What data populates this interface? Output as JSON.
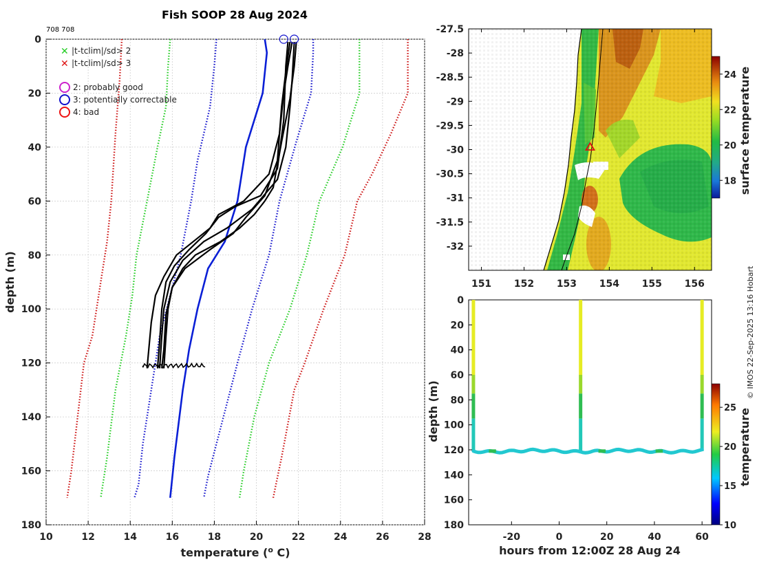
{
  "title": "Fish SOOP 28 Aug 2024",
  "cruise_id": "708 708",
  "credit": "© IMOS 22-Sep-2025 13:16 Hobart",
  "colors": {
    "climatology_sd2": "#22cc22",
    "climatology_sd3": "#cc1111",
    "climatology_sd1": "#1111cc",
    "climatology_mean": "#0a1fd6",
    "profiles": "#000000",
    "flag_probably_good": "#cc22cc",
    "flag_correctable": "#1111cc",
    "flag_bad": "#ee1111"
  },
  "legend": {
    "cross_green": "|t-tclim|/sd> 2",
    "cross_red": "|t-tclim|/sd> 3",
    "flag2": "2: probably good",
    "flag3": "3: potentially correctable",
    "flag4": "4: bad"
  },
  "chart_data": [
    {
      "type": "line",
      "name": "profile-plot",
      "xlabel": "temperature (° C)",
      "ylabel": "depth (m)",
      "xlim": [
        10,
        28
      ],
      "ylim": [
        180,
        0
      ],
      "xticks": [
        10,
        12,
        14,
        16,
        18,
        20,
        22,
        24,
        26,
        28
      ],
      "yticks": [
        0,
        20,
        40,
        60,
        80,
        100,
        120,
        140,
        160,
        180
      ],
      "grid": true,
      "series": [
        {
          "name": "mean",
          "style": "solid",
          "color": "climatology_mean",
          "points": [
            [
              20.4,
              0
            ],
            [
              20.5,
              5
            ],
            [
              20.3,
              20
            ],
            [
              19.5,
              40
            ],
            [
              19.1,
              60
            ],
            [
              18.5,
              75
            ],
            [
              17.7,
              85
            ],
            [
              17.2,
              100
            ],
            [
              16.8,
              115
            ],
            [
              16.5,
              130
            ],
            [
              16.1,
              155
            ],
            [
              15.9,
              170
            ]
          ]
        },
        {
          "name": "mean+sd",
          "style": "dotted",
          "color": "climatology_sd1",
          "points": [
            [
              22.7,
              0
            ],
            [
              22.7,
              5
            ],
            [
              22.6,
              20
            ],
            [
              21.9,
              38
            ],
            [
              21.1,
              60
            ],
            [
              20.6,
              80
            ],
            [
              19.8,
              100
            ],
            [
              19.1,
              120
            ],
            [
              18.6,
              135
            ],
            [
              18.1,
              150
            ],
            [
              17.7,
              162
            ],
            [
              17.5,
              170
            ]
          ]
        },
        {
          "name": "mean-sd",
          "style": "dotted",
          "color": "climatology_sd1",
          "points": [
            [
              18.1,
              0
            ],
            [
              18.0,
              10
            ],
            [
              17.8,
              25
            ],
            [
              17.2,
              45
            ],
            [
              16.9,
              60
            ],
            [
              16.4,
              80
            ],
            [
              15.9,
              95
            ],
            [
              15.4,
              110
            ],
            [
              15.0,
              130
            ],
            [
              14.6,
              150
            ],
            [
              14.4,
              165
            ],
            [
              14.2,
              170
            ]
          ]
        },
        {
          "name": "mean+2sd",
          "style": "dotted",
          "color": "climatology_sd2",
          "points": [
            [
              24.9,
              0
            ],
            [
              24.9,
              10
            ],
            [
              24.9,
              20
            ],
            [
              24.1,
              40
            ],
            [
              23.0,
              60
            ],
            [
              22.4,
              80
            ],
            [
              21.6,
              100
            ],
            [
              20.6,
              120
            ],
            [
              19.9,
              140
            ],
            [
              19.4,
              160
            ],
            [
              19.2,
              170
            ]
          ]
        },
        {
          "name": "mean-2sd",
          "style": "dotted",
          "color": "climatology_sd2",
          "points": [
            [
              15.9,
              0
            ],
            [
              15.8,
              10
            ],
            [
              15.7,
              25
            ],
            [
              15.3,
              40
            ],
            [
              14.8,
              60
            ],
            [
              14.3,
              80
            ],
            [
              14.1,
              95
            ],
            [
              13.8,
              110
            ],
            [
              13.3,
              130
            ],
            [
              12.9,
              155
            ],
            [
              12.6,
              170
            ]
          ]
        },
        {
          "name": "mean+3sd",
          "style": "dotted",
          "color": "climatology_sd3",
          "points": [
            [
              27.2,
              0
            ],
            [
              27.2,
              10
            ],
            [
              27.2,
              20
            ],
            [
              26.4,
              35
            ],
            [
              25.5,
              50
            ],
            [
              24.8,
              60
            ],
            [
              24.2,
              80
            ],
            [
              23.2,
              100
            ],
            [
              22.3,
              120
            ],
            [
              21.8,
              130
            ],
            [
              21.2,
              155
            ],
            [
              20.8,
              170
            ]
          ]
        },
        {
          "name": "mean-3sd",
          "style": "dotted",
          "color": "climatology_sd3",
          "points": [
            [
              13.6,
              0
            ],
            [
              13.5,
              15
            ],
            [
              13.3,
              35
            ],
            [
              13.1,
              60
            ],
            [
              12.9,
              75
            ],
            [
              12.6,
              90
            ],
            [
              12.2,
              110
            ],
            [
              11.8,
              120
            ],
            [
              11.5,
              140
            ],
            [
              11.2,
              160
            ],
            [
              11.0,
              170
            ]
          ]
        },
        {
          "name": "profile-1",
          "style": "solid",
          "color": "profiles",
          "points": [
            [
              21.7,
              1
            ],
            [
              21.5,
              10
            ],
            [
              21.3,
              20
            ],
            [
              21.1,
              35
            ],
            [
              20.6,
              50
            ],
            [
              19.4,
              60
            ],
            [
              18.2,
              65
            ],
            [
              17.8,
              70
            ],
            [
              17.0,
              75
            ],
            [
              16.2,
              80
            ],
            [
              15.6,
              88
            ],
            [
              15.2,
              95
            ],
            [
              15.0,
              105
            ],
            [
              14.8,
              122
            ]
          ]
        },
        {
          "name": "profile-2",
          "style": "solid",
          "color": "profiles",
          "points": [
            [
              21.8,
              1
            ],
            [
              21.7,
              15
            ],
            [
              21.6,
              25
            ],
            [
              21.4,
              40
            ],
            [
              21.0,
              52
            ],
            [
              19.8,
              63
            ],
            [
              18.6,
              70
            ],
            [
              17.5,
              75
            ],
            [
              16.5,
              82
            ],
            [
              15.9,
              90
            ],
            [
              15.6,
              100
            ],
            [
              15.5,
              110
            ],
            [
              15.4,
              122
            ]
          ]
        },
        {
          "name": "profile-3",
          "style": "solid",
          "color": "profiles",
          "points": [
            [
              21.6,
              1
            ],
            [
              21.4,
              12
            ],
            [
              21.2,
              25
            ],
            [
              21.0,
              45
            ],
            [
              20.4,
              58
            ],
            [
              19.5,
              66
            ],
            [
              18.9,
              72
            ],
            [
              17.8,
              78
            ],
            [
              16.6,
              85
            ],
            [
              16.0,
              92
            ],
            [
              15.8,
              100
            ],
            [
              15.7,
              110
            ],
            [
              15.6,
              122
            ]
          ]
        },
        {
          "name": "profile-4",
          "style": "solid",
          "color": "profiles",
          "points": [
            [
              21.9,
              1
            ],
            [
              21.8,
              10
            ],
            [
              21.6,
              22
            ],
            [
              21.2,
              38
            ],
            [
              20.8,
              55
            ],
            [
              20.4,
              60
            ],
            [
              19.9,
              65
            ],
            [
              19.2,
              70
            ],
            [
              18.3,
              75
            ],
            [
              17.1,
              80
            ],
            [
              16.5,
              85
            ],
            [
              16.0,
              92
            ],
            [
              15.7,
              102
            ],
            [
              15.6,
              115
            ],
            [
              15.5,
              122
            ]
          ]
        },
        {
          "name": "profile-5",
          "style": "solid",
          "color": "profiles",
          "points": [
            [
              21.5,
              1
            ],
            [
              21.4,
              10
            ],
            [
              21.3,
              30
            ],
            [
              21.0,
              48
            ],
            [
              20.2,
              58
            ],
            [
              19.0,
              62
            ],
            [
              18.2,
              66
            ],
            [
              17.6,
              72
            ],
            [
              16.8,
              78
            ],
            [
              16.1,
              84
            ],
            [
              15.7,
              90
            ],
            [
              15.5,
              100
            ],
            [
              15.4,
              112
            ],
            [
              15.3,
              122
            ]
          ]
        }
      ],
      "flag_markers": [
        {
          "flag": 3,
          "x": 21.3,
          "y": 0
        },
        {
          "flag": 3,
          "x": 21.8,
          "y": 0
        }
      ]
    },
    {
      "type": "heatmap",
      "name": "sst-map",
      "xticks": [
        "151",
        "152",
        "153",
        "154",
        "155",
        "156"
      ],
      "yticks": [
        "-27.5",
        "-28",
        "-28.5",
        "-29",
        "-29.5",
        "-30",
        "-30.5",
        "-31",
        "-31.5",
        "-32"
      ],
      "xlim": [
        150.7,
        156.4
      ],
      "ylim": [
        -32.5,
        -27.5
      ],
      "marker": {
        "lon": 153.55,
        "lat": -29.95
      },
      "colorbar": {
        "label": "surface temperature",
        "ticks": [
          "18",
          "20",
          "22",
          "24"
        ],
        "range": [
          17,
          25
        ]
      }
    },
    {
      "type": "scatter",
      "name": "time-depth-plot",
      "xlabel": "hours from 12:00Z 28 Aug 24",
      "ylabel": "depth (m)",
      "xticks": [
        "-20",
        "0",
        "20",
        "40",
        "60"
      ],
      "yticks": [
        "0",
        "20",
        "40",
        "60",
        "80",
        "100",
        "120",
        "140",
        "160",
        "180"
      ],
      "xlim": [
        -38,
        64
      ],
      "ylim": [
        180,
        0
      ],
      "casts_hours": [
        -36,
        9,
        60
      ],
      "bottom_depth": 121,
      "colorbar": {
        "label": "temperature",
        "ticks": [
          "10",
          "15",
          "20",
          "25"
        ],
        "range": [
          10,
          28
        ]
      }
    }
  ]
}
